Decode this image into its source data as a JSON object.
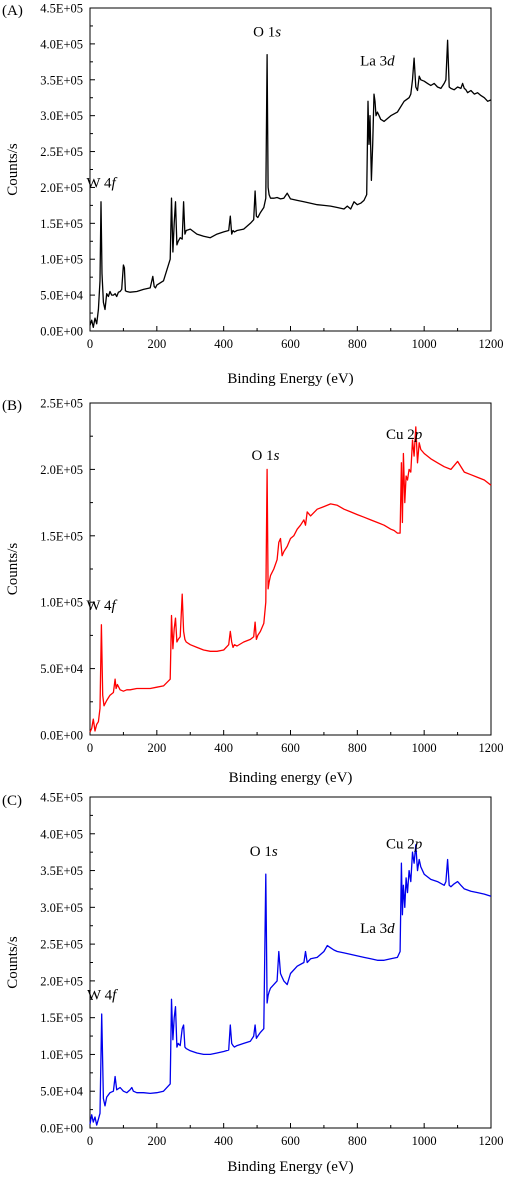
{
  "chart_data": [
    {
      "type": "line",
      "panel_label": "(A)",
      "xlabel": "Binding Energy (eV)",
      "ylabel": "Counts/s",
      "xlim": [
        0,
        1200
      ],
      "ylim": [
        0,
        450000
      ],
      "x_ticks": [
        "0",
        "200",
        "400",
        "600",
        "800",
        "1000",
        "1200"
      ],
      "y_ticks": [
        "0.0E+00",
        "5.0E+04",
        "1.0E+05",
        "1.5E+05",
        "2.0E+05",
        "2.5E+05",
        "3.0E+05",
        "3.5E+05",
        "4.0E+05",
        "4.5E+05"
      ],
      "grid": false,
      "color": "#000000",
      "annotations": [
        {
          "main": "W 4",
          "italic": "f",
          "x": 33,
          "y": 200000
        },
        {
          "main": "O 1",
          "italic": "s",
          "x": 530,
          "y": 410000
        },
        {
          "main": "La 3",
          "italic": "d",
          "x": 860,
          "y": 370000
        }
      ],
      "series": [
        {
          "x": [
            0,
            5,
            10,
            15,
            20,
            25,
            30,
            33,
            36,
            40,
            45,
            50,
            55,
            60,
            65,
            70,
            75,
            80,
            85,
            90,
            95,
            100,
            103,
            106,
            110,
            120,
            140,
            160,
            180,
            188,
            192,
            196,
            200,
            220,
            240,
            244,
            248,
            252,
            256,
            260,
            264,
            270,
            276,
            280,
            284,
            288,
            300,
            320,
            340,
            360,
            380,
            400,
            415,
            420,
            424,
            428,
            432,
            440,
            460,
            480,
            490,
            494,
            498,
            502,
            510,
            520,
            526,
            530,
            533,
            536,
            540,
            550,
            560,
            570,
            580,
            590,
            600,
            620,
            640,
            660,
            680,
            700,
            720,
            740,
            760,
            770,
            780,
            790,
            800,
            810,
            820,
            828,
            832,
            835,
            838,
            842,
            846,
            850,
            853,
            856,
            860,
            865,
            870,
            880,
            900,
            920,
            940,
            955,
            960,
            965,
            970,
            975,
            980,
            985,
            990,
            1000,
            1010,
            1020,
            1030,
            1040,
            1050,
            1060,
            1065,
            1070,
            1075,
            1080,
            1090,
            1100,
            1110,
            1115,
            1120,
            1125,
            1130,
            1140,
            1150,
            1160,
            1170,
            1180,
            1190,
            1200
          ],
          "y": [
            8000,
            15000,
            5000,
            18000,
            10000,
            30000,
            70000,
            180000,
            80000,
            40000,
            30000,
            52000,
            48000,
            55000,
            50000,
            50000,
            52000,
            48000,
            54000,
            55000,
            58000,
            92000,
            88000,
            56000,
            55000,
            54000,
            55000,
            58000,
            60000,
            76000,
            62000,
            60000,
            64000,
            70000,
            100000,
            185000,
            110000,
            150000,
            180000,
            120000,
            125000,
            130000,
            128000,
            180000,
            135000,
            140000,
            142000,
            135000,
            132000,
            130000,
            135000,
            138000,
            140000,
            160000,
            135000,
            140000,
            138000,
            140000,
            142000,
            150000,
            155000,
            195000,
            160000,
            158000,
            165000,
            172000,
            185000,
            385000,
            200000,
            190000,
            185000,
            185000,
            186000,
            184000,
            185000,
            192000,
            184000,
            182000,
            180000,
            178000,
            176000,
            175000,
            174000,
            172000,
            170000,
            174000,
            170000,
            180000,
            176000,
            178000,
            182000,
            190000,
            320000,
            260000,
            300000,
            210000,
            260000,
            330000,
            320000,
            300000,
            305000,
            300000,
            295000,
            292000,
            300000,
            305000,
            320000,
            325000,
            330000,
            350000,
            380000,
            340000,
            335000,
            355000,
            350000,
            348000,
            345000,
            342000,
            345000,
            340000,
            338000,
            345000,
            350000,
            405000,
            340000,
            338000,
            336000,
            340000,
            338000,
            345000,
            338000,
            336000,
            332000,
            335000,
            330000,
            332000,
            328000,
            325000,
            320000,
            322000
          ]
        }
      ]
    },
    {
      "type": "line",
      "panel_label": "(B)",
      "xlabel": "Binding energy (eV)",
      "ylabel": "Counts/s",
      "xlim": [
        0,
        1200
      ],
      "ylim": [
        0,
        250000
      ],
      "x_ticks": [
        "0",
        "200",
        "400",
        "600",
        "800",
        "1000",
        "1200"
      ],
      "y_ticks": [
        "0.0E+00",
        "5.0E+04",
        "1.0E+05",
        "1.5E+05",
        "2.0E+05",
        "2.5E+05"
      ],
      "grid": false,
      "color": "#ff0000",
      "annotations": [
        {
          "main": "W 4",
          "italic": "f",
          "x": 33,
          "y": 94000
        },
        {
          "main": "O 1",
          "italic": "s",
          "x": 525,
          "y": 207000
        },
        {
          "main": "Cu 2",
          "italic": "p",
          "x": 940,
          "y": 223000
        }
      ],
      "series": [
        {
          "x": [
            0,
            5,
            10,
            15,
            20,
            25,
            30,
            34,
            38,
            42,
            50,
            60,
            70,
            75,
            78,
            82,
            90,
            100,
            110,
            120,
            140,
            160,
            180,
            200,
            220,
            240,
            244,
            248,
            252,
            256,
            260,
            264,
            270,
            276,
            280,
            284,
            288,
            300,
            320,
            340,
            360,
            380,
            400,
            415,
            420,
            424,
            428,
            432,
            440,
            460,
            480,
            490,
            494,
            498,
            502,
            510,
            520,
            526,
            530,
            533,
            536,
            540,
            550,
            560,
            565,
            570,
            575,
            580,
            590,
            600,
            610,
            620,
            630,
            640,
            645,
            650,
            660,
            680,
            700,
            720,
            740,
            760,
            780,
            800,
            820,
            840,
            860,
            880,
            900,
            910,
            920,
            928,
            932,
            935,
            938,
            942,
            946,
            950,
            955,
            960,
            965,
            970,
            975,
            980,
            985,
            990,
            1000,
            1020,
            1040,
            1060,
            1080,
            1100,
            1120,
            1140,
            1160,
            1180,
            1200
          ],
          "y": [
            2000,
            5000,
            12000,
            3000,
            8000,
            10000,
            20000,
            83000,
            30000,
            22000,
            26000,
            30000,
            32000,
            42000,
            35000,
            38000,
            34000,
            33000,
            34000,
            34000,
            35000,
            35000,
            35000,
            36000,
            37000,
            42000,
            90000,
            65000,
            80000,
            88000,
            70000,
            72000,
            74000,
            106000,
            78000,
            72000,
            70000,
            68000,
            66000,
            64000,
            63000,
            63000,
            64000,
            68000,
            78000,
            70000,
            66000,
            68000,
            67000,
            70000,
            72000,
            74000,
            85000,
            72000,
            75000,
            78000,
            84000,
            100000,
            200000,
            110000,
            115000,
            120000,
            125000,
            132000,
            145000,
            148000,
            135000,
            138000,
            142000,
            148000,
            150000,
            155000,
            158000,
            162000,
            158000,
            168000,
            165000,
            170000,
            172000,
            174000,
            173000,
            170000,
            168000,
            166000,
            164000,
            162000,
            160000,
            158000,
            155000,
            154000,
            152000,
            152000,
            205000,
            160000,
            212000,
            175000,
            195000,
            192000,
            200000,
            198000,
            222000,
            210000,
            232000,
            205000,
            220000,
            215000,
            212000,
            208000,
            205000,
            202000,
            200000,
            206000,
            198000,
            196000,
            194000,
            192000,
            188000
          ]
        }
      ]
    },
    {
      "type": "line",
      "panel_label": "(C)",
      "xlabel": "Binding Energy (eV)",
      "ylabel": "Counts/s",
      "xlim": [
        0,
        1200
      ],
      "ylim": [
        0,
        450000
      ],
      "x_ticks": [
        "0",
        "200",
        "400",
        "600",
        "800",
        "1000",
        "1200"
      ],
      "y_ticks": [
        "0.0E+00",
        "5.0E+04",
        "1.0E+05",
        "1.5E+05",
        "2.0E+05",
        "2.5E+05",
        "3.0E+05",
        "3.5E+05",
        "4.0E+05",
        "4.5E+05"
      ],
      "grid": false,
      "color": "#0000ee",
      "annotations": [
        {
          "main": "W 4",
          "italic": "f",
          "x": 35,
          "y": 175000
        },
        {
          "main": "O 1",
          "italic": "s",
          "x": 520,
          "y": 370000
        },
        {
          "main": "La 3",
          "italic": "d",
          "x": 860,
          "y": 265000
        },
        {
          "main": "Cu 2",
          "italic": "p",
          "x": 940,
          "y": 380000
        }
      ],
      "series": [
        {
          "x": [
            0,
            5,
            10,
            15,
            20,
            25,
            30,
            35,
            40,
            45,
            50,
            60,
            70,
            75,
            80,
            90,
            100,
            110,
            120,
            125,
            130,
            140,
            160,
            180,
            200,
            220,
            240,
            244,
            248,
            252,
            256,
            260,
            264,
            270,
            276,
            280,
            284,
            288,
            300,
            320,
            340,
            360,
            380,
            400,
            415,
            420,
            424,
            428,
            432,
            440,
            460,
            480,
            490,
            494,
            498,
            502,
            510,
            520,
            526,
            530,
            533,
            536,
            540,
            550,
            560,
            565,
            570,
            575,
            580,
            590,
            600,
            620,
            640,
            645,
            650,
            660,
            680,
            700,
            710,
            720,
            730,
            740,
            760,
            780,
            800,
            820,
            840,
            860,
            880,
            900,
            920,
            928,
            932,
            935,
            938,
            942,
            946,
            950,
            955,
            960,
            965,
            970,
            975,
            980,
            985,
            990,
            1000,
            1020,
            1040,
            1060,
            1065,
            1070,
            1075,
            1080,
            1090,
            1100,
            1110,
            1120,
            1140,
            1160,
            1180,
            1200
          ],
          "y": [
            5000,
            18000,
            8000,
            15000,
            4000,
            12000,
            20000,
            155000,
            40000,
            30000,
            42000,
            48000,
            50000,
            70000,
            52000,
            55000,
            50000,
            48000,
            52000,
            55000,
            50000,
            48000,
            48000,
            47000,
            48000,
            50000,
            60000,
            175000,
            120000,
            150000,
            165000,
            110000,
            115000,
            112000,
            135000,
            140000,
            110000,
            108000,
            105000,
            102000,
            100000,
            100000,
            102000,
            104000,
            106000,
            140000,
            115000,
            112000,
            110000,
            112000,
            115000,
            118000,
            125000,
            140000,
            122000,
            125000,
            130000,
            135000,
            345000,
            170000,
            180000,
            185000,
            190000,
            195000,
            200000,
            240000,
            210000,
            205000,
            200000,
            195000,
            210000,
            220000,
            225000,
            240000,
            225000,
            230000,
            232000,
            240000,
            248000,
            245000,
            242000,
            240000,
            238000,
            236000,
            234000,
            232000,
            230000,
            228000,
            228000,
            230000,
            232000,
            240000,
            360000,
            290000,
            330000,
            300000,
            340000,
            320000,
            350000,
            335000,
            375000,
            360000,
            385000,
            350000,
            365000,
            355000,
            345000,
            338000,
            335000,
            330000,
            335000,
            365000,
            330000,
            328000,
            332000,
            335000,
            330000,
            325000,
            322000,
            320000,
            318000,
            315000
          ]
        }
      ]
    }
  ]
}
